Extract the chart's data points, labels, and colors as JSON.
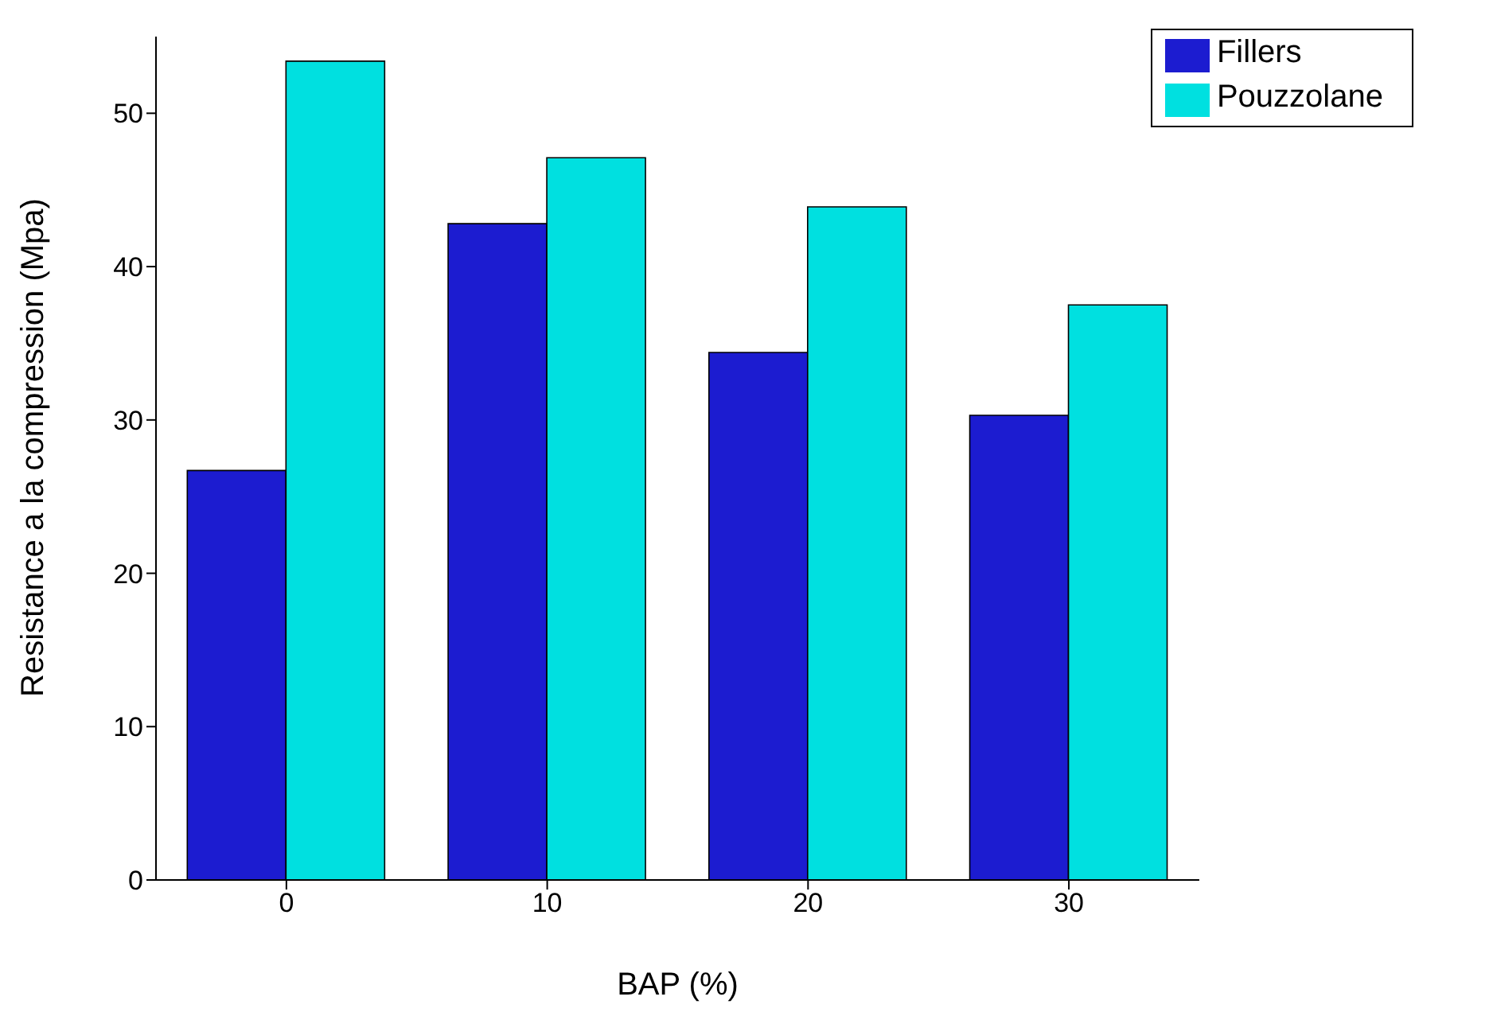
{
  "chart_data": {
    "type": "bar",
    "xlabel": "BAP (%)",
    "ylabel": "Resistance a la compression (Mpa)",
    "categories": [
      "0",
      "10",
      "20",
      "30"
    ],
    "series": [
      {
        "name": "Fillers",
        "color": "#1c1cd0",
        "values": [
          26.7,
          42.8,
          34.4,
          30.3
        ]
      },
      {
        "name": "Pouzzolane",
        "color": "#00e0e0",
        "values": [
          53.4,
          47.1,
          43.9,
          37.5
        ]
      }
    ],
    "ylim": [
      0,
      55
    ],
    "yticks": [
      0,
      10,
      20,
      30,
      40,
      50
    ],
    "grid": false,
    "legend": "top right"
  }
}
